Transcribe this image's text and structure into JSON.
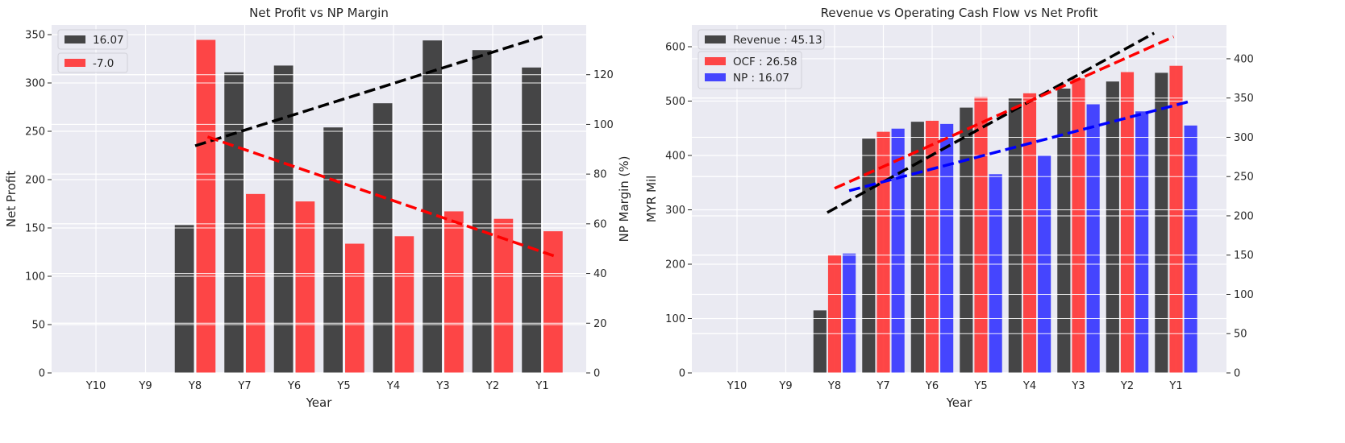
{
  "chart_data": [
    {
      "type": "bar",
      "title": "Net Profit vs NP Margin",
      "xlabel": "Year",
      "ylabel": "Net Profit",
      "y2label": "NP Margin (%)",
      "categories": [
        "Y10",
        "Y9",
        "Y8",
        "Y7",
        "Y6",
        "Y5",
        "Y4",
        "Y3",
        "Y2",
        "Y1"
      ],
      "ylim": [
        0,
        360
      ],
      "y2lim": [
        0,
        140
      ],
      "yticks": [
        0,
        50,
        100,
        150,
        200,
        250,
        300,
        350
      ],
      "y2ticks": [
        0,
        20,
        40,
        60,
        80,
        100,
        120
      ],
      "grid": true,
      "legend_position": "top-left",
      "series": [
        {
          "name": "16.07",
          "axis": "left",
          "color": "#333333",
          "values": [
            null,
            null,
            153,
            311,
            318,
            254,
            279,
            344,
            334,
            316
          ]
        },
        {
          "name": "-7.0",
          "axis": "right",
          "color": "#ff3333",
          "values": [
            null,
            null,
            134,
            72,
            69,
            52,
            55,
            65,
            62,
            57
          ]
        }
      ],
      "trendlines": [
        {
          "axis": "left",
          "color": "#000000",
          "start": [
            2,
            235
          ],
          "end": [
            9,
            348
          ]
        },
        {
          "axis": "right",
          "color": "#ff0000",
          "start": [
            2.25,
            95
          ],
          "end": [
            9.25,
            47
          ]
        }
      ]
    },
    {
      "type": "bar",
      "title": "Revenue vs Operating Cash Flow vs Net Profit",
      "xlabel": "Year",
      "ylabel": "MYR Mil",
      "categories": [
        "Y10",
        "Y9",
        "Y8",
        "Y7",
        "Y6",
        "Y5",
        "Y4",
        "Y3",
        "Y2",
        "Y1"
      ],
      "ylim": [
        0,
        640
      ],
      "y2lim": [
        0,
        443
      ],
      "yticks": [
        0,
        100,
        200,
        300,
        400,
        500,
        600
      ],
      "y2ticks": [
        0,
        50,
        100,
        150,
        200,
        250,
        300,
        350,
        400
      ],
      "grid": true,
      "legend_position": "top-left",
      "series": [
        {
          "name": "Revenue : 45.13",
          "axis": "left",
          "color": "#333333",
          "values": [
            null,
            null,
            115,
            431,
            462,
            488,
            505,
            523,
            536,
            552
          ]
        },
        {
          "name": "OCF : 26.58",
          "axis": "right",
          "color": "#ff3333",
          "values": [
            null,
            null,
            150,
            307,
            321,
            351,
            356,
            375,
            383,
            391
          ]
        },
        {
          "name": "NP : 16.07",
          "axis": "right",
          "color": "#3333ff",
          "values": [
            null,
            null,
            152,
            311,
            317,
            253,
            277,
            342,
            333,
            315
          ]
        }
      ],
      "trendlines": [
        {
          "axis": "left",
          "color": "#000000",
          "start": [
            1.85,
            295
          ],
          "end": [
            8.55,
            625
          ]
        },
        {
          "axis": "right",
          "color": "#ff0000",
          "start": [
            2.0,
            235
          ],
          "end": [
            8.95,
            428
          ]
        },
        {
          "axis": "right",
          "color": "#0000ff",
          "start": [
            2.3,
            232
          ],
          "end": [
            9.3,
            346
          ]
        }
      ]
    }
  ]
}
